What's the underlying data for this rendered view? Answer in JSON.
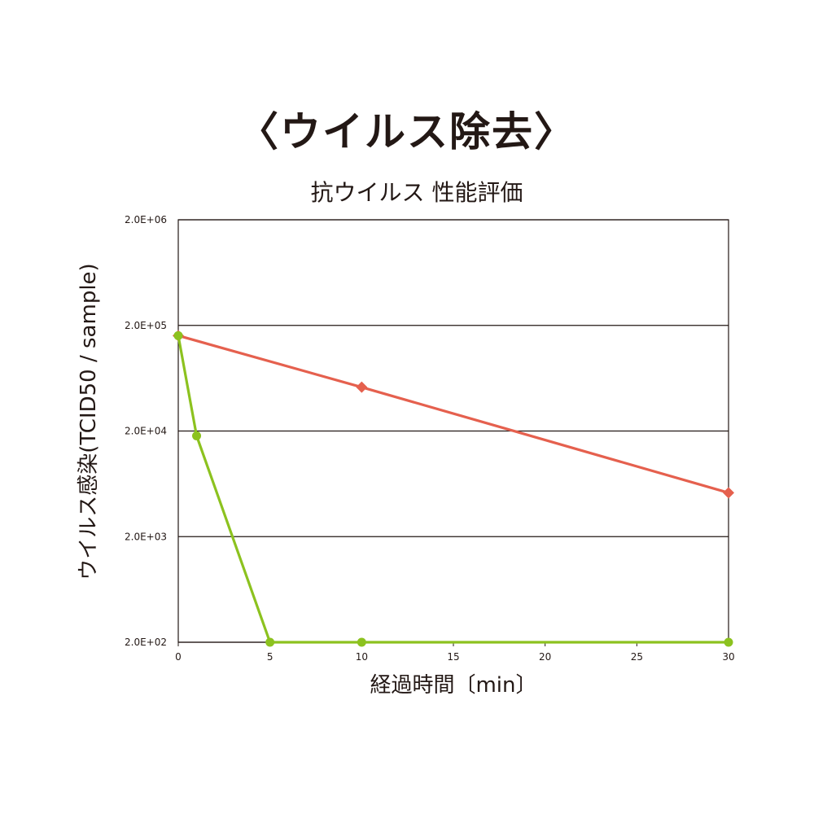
{
  "heading": "〈ウイルス除去〉",
  "chart_data": {
    "type": "line",
    "title": "抗ウイルス 性能評価",
    "xlabel": "経過時間〔min〕",
    "ylabel": "ウイルス感染(TCID50 / sample)",
    "xlim": [
      0,
      30
    ],
    "x_ticks": [
      0,
      5,
      10,
      15,
      20,
      25,
      30
    ],
    "x_tick_labels": [
      "0",
      "5",
      "10",
      "15",
      "20",
      "25",
      "30"
    ],
    "y_scale": "log",
    "ylim": [
      200,
      2000000
    ],
    "y_ticks": [
      200,
      2000,
      20000,
      200000,
      2000000
    ],
    "y_tick_labels": [
      "2.0E+02",
      "2.0E+03",
      "2.0E+04",
      "2.0E+05",
      "2.0E+06"
    ],
    "grid": "horizontal",
    "legend": "none",
    "series": [
      {
        "color": "#e5604e",
        "marker": "diamond",
        "points": [
          {
            "x": 0,
            "y": 160000
          },
          {
            "x": 10,
            "y": 52000
          },
          {
            "x": 30,
            "y": 5200
          }
        ]
      },
      {
        "color": "#8cc21f",
        "marker": "circle",
        "points": [
          {
            "x": 0,
            "y": 160000
          },
          {
            "x": 1,
            "y": 18000
          },
          {
            "x": 5,
            "y": 200
          },
          {
            "x": 10,
            "y": 200
          },
          {
            "x": 30,
            "y": 200
          }
        ]
      }
    ]
  }
}
